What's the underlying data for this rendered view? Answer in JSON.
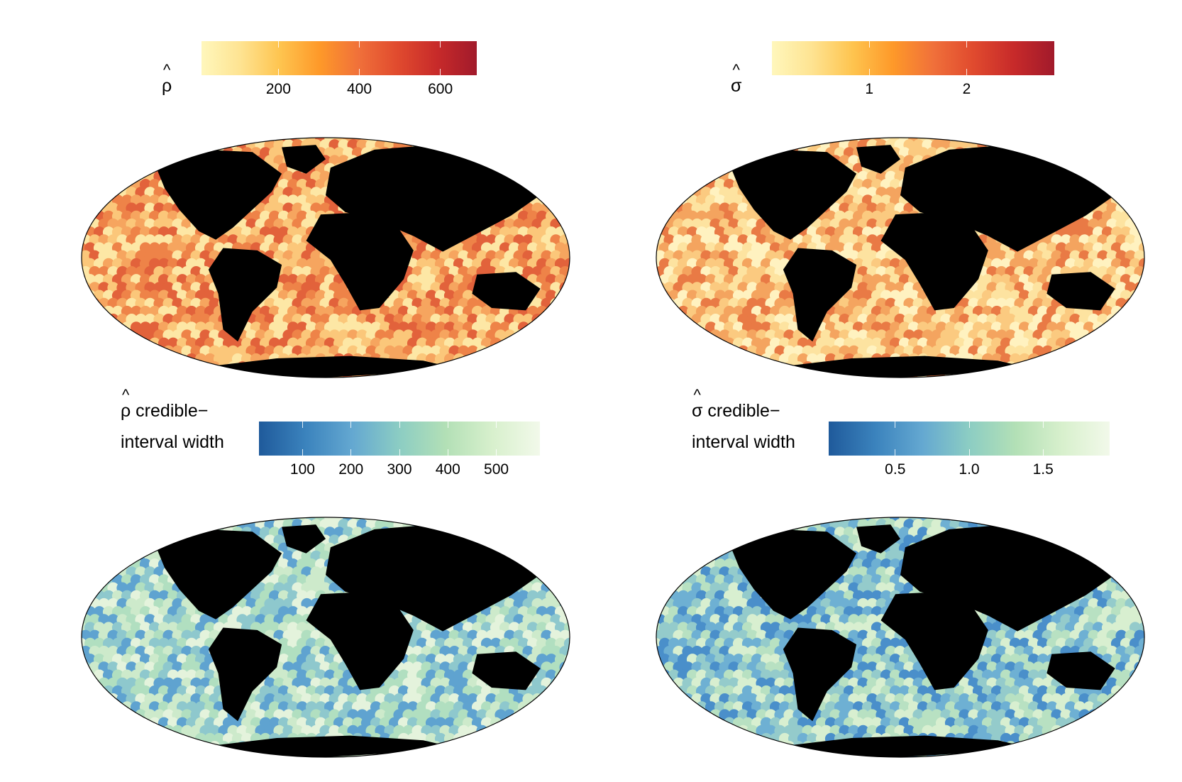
{
  "panels": [
    {
      "id": "rho",
      "legend": {
        "symbol": "ρ",
        "hat": "^",
        "suffix": "",
        "line2": ""
      },
      "colorbar": {
        "palette": "YlOrRd",
        "stops": [
          "#fff7bc",
          "#fee391",
          "#fec44f",
          "#fe9929",
          "#f0703a",
          "#e04a2e",
          "#c72a2a",
          "#a11a2b"
        ],
        "range": [
          10,
          690
        ],
        "ticks": [
          {
            "value": 200,
            "label": "200"
          },
          {
            "value": 400,
            "label": "400"
          },
          {
            "value": 600,
            "label": "600"
          }
        ]
      },
      "map": {
        "projection": "mollweide",
        "ocean_colors": [
          "#fde7a5",
          "#fbc77a",
          "#f6a55f",
          "#ee8348",
          "#e2623b"
        ],
        "land_color": "#000000"
      }
    },
    {
      "id": "sigma",
      "legend": {
        "symbol": "σ",
        "hat": "^",
        "suffix": "",
        "line2": ""
      },
      "colorbar": {
        "palette": "YlOrRd",
        "stops": [
          "#fff7bc",
          "#fee391",
          "#fec44f",
          "#fe9929",
          "#f0703a",
          "#e04a2e",
          "#c72a2a",
          "#a11a2b"
        ],
        "range": [
          0.0,
          2.9
        ],
        "ticks": [
          {
            "value": 1,
            "label": "1"
          },
          {
            "value": 2,
            "label": "2"
          }
        ]
      },
      "map": {
        "projection": "mollweide",
        "ocean_colors": [
          "#fff2c0",
          "#fde3a0",
          "#fbca80",
          "#f4a45f",
          "#e97a45"
        ],
        "land_color": "#000000"
      }
    },
    {
      "id": "rho_ci",
      "legend": {
        "symbol": "ρ",
        "hat": "^",
        "suffix": " credible−",
        "line2": "interval width"
      },
      "colorbar": {
        "palette": "GnBu-reversed",
        "stops": [
          "#1f5a9b",
          "#3b83bd",
          "#64a8d1",
          "#8ccdc3",
          "#b3e0b6",
          "#d8f0cd",
          "#f2f9ea"
        ],
        "range": [
          10,
          590
        ],
        "ticks": [
          {
            "value": 100,
            "label": "100"
          },
          {
            "value": 200,
            "label": "200"
          },
          {
            "value": 300,
            "label": "300"
          },
          {
            "value": 400,
            "label": "400"
          },
          {
            "value": 500,
            "label": "500"
          }
        ]
      },
      "map": {
        "projection": "mollweide",
        "ocean_colors": [
          "#e4f3dc",
          "#cdeacb",
          "#b1dfc0",
          "#8ec8cd",
          "#5fa3d0"
        ],
        "land_color": "#000000"
      }
    },
    {
      "id": "sigma_ci",
      "legend": {
        "symbol": "σ",
        "hat": "^",
        "suffix": " credible−",
        "line2": "interval width"
      },
      "colorbar": {
        "palette": "GnBu-reversed",
        "stops": [
          "#1f5a9b",
          "#3b83bd",
          "#64a8d1",
          "#8ccdc3",
          "#b3e0b6",
          "#d8f0cd",
          "#f2f9ea"
        ],
        "range": [
          0.05,
          1.95
        ],
        "ticks": [
          {
            "value": 0.5,
            "label": "0.5"
          },
          {
            "value": 1.0,
            "label": "1.0"
          },
          {
            "value": 1.5,
            "label": "1.5"
          }
        ]
      },
      "map": {
        "projection": "mollweide",
        "ocean_colors": [
          "#d8efd0",
          "#b8e1c2",
          "#94cbcb",
          "#6eb0d3",
          "#4a8fca"
        ],
        "land_color": "#000000"
      }
    }
  ]
}
